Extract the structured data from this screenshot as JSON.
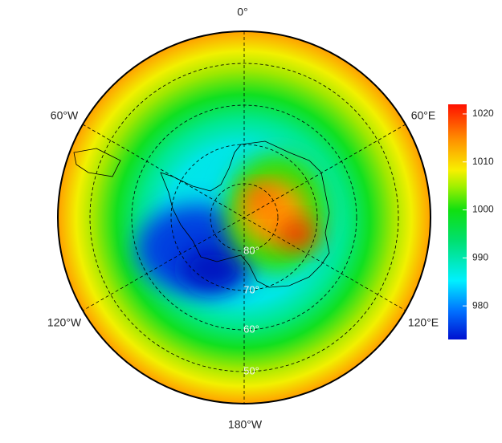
{
  "map": {
    "longitude_labels": [
      "0°",
      "60°E",
      "120°E",
      "180°W",
      "120°W",
      "60°W"
    ],
    "latitude_labels": [
      "80°",
      "70°",
      "60°",
      "50°"
    ],
    "colorbar": {
      "range": [
        973,
        1022
      ],
      "ticks": [
        980,
        990,
        1000,
        1010,
        1020
      ]
    }
  }
}
